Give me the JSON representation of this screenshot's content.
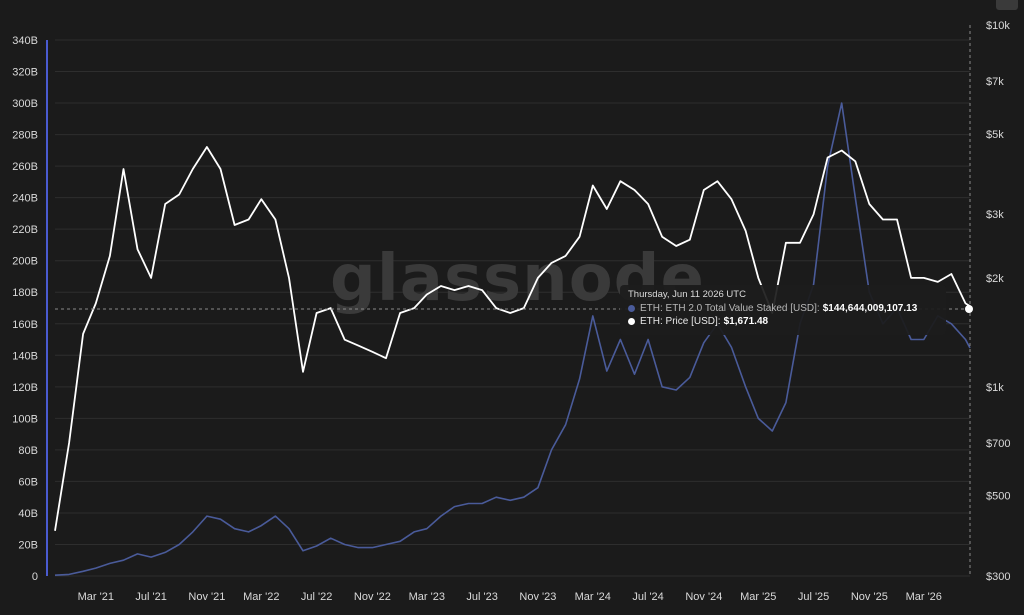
{
  "chart_data": {
    "type": "line",
    "watermark": "glassnode",
    "x_axis": {
      "range": [
        "2020-12-01",
        "2026-06-11"
      ],
      "tick_labels": [
        "Mar '21",
        "Jul '21",
        "Nov '21",
        "Mar '22",
        "Jul '22",
        "Nov '22",
        "Mar '23",
        "Jul '23",
        "Nov '23",
        "Mar '24",
        "Jul '24",
        "Nov '24",
        "Mar '25",
        "Jul '25",
        "Nov '25",
        "Mar '26"
      ],
      "tick_dates": [
        "2021-03-01",
        "2021-07-01",
        "2021-11-01",
        "2022-03-01",
        "2022-07-01",
        "2022-11-01",
        "2023-03-01",
        "2023-07-01",
        "2023-11-01",
        "2024-03-01",
        "2024-07-01",
        "2024-11-01",
        "2025-03-01",
        "2025-07-01",
        "2025-11-01",
        "2026-03-01"
      ]
    },
    "y_left": {
      "ylim": [
        0,
        340
      ],
      "tick_values": [
        0,
        20,
        40,
        60,
        80,
        100,
        120,
        140,
        160,
        180,
        200,
        220,
        240,
        260,
        280,
        300,
        320,
        340
      ],
      "tick_labels": [
        "0",
        "20B",
        "40B",
        "60B",
        "80B",
        "100B",
        "120B",
        "140B",
        "160B",
        "180B",
        "200B",
        "220B",
        "240B",
        "260B",
        "280B",
        "300B",
        "320B",
        "340B"
      ]
    },
    "y_right": {
      "scale": "log",
      "ylim": [
        300,
        10000
      ],
      "tick_values": [
        300,
        500,
        700,
        1000,
        2000,
        3000,
        5000,
        7000,
        10000
      ],
      "tick_labels": [
        "$300",
        "$500",
        "$700",
        "$1k",
        "$2k",
        "$3k",
        "$5k",
        "$7k",
        "$10k"
      ]
    },
    "grid": true,
    "series": [
      {
        "name": "ETH: ETH 2.0 Total Value Staked [USD]",
        "axis": "left",
        "color": "#4a5b9a",
        "x": [
          "2020-12-01",
          "2021-01-01",
          "2021-02-01",
          "2021-03-01",
          "2021-04-01",
          "2021-05-01",
          "2021-06-01",
          "2021-07-01",
          "2021-08-01",
          "2021-09-01",
          "2021-10-01",
          "2021-11-01",
          "2021-12-01",
          "2022-01-01",
          "2022-02-01",
          "2022-03-01",
          "2022-04-01",
          "2022-05-01",
          "2022-06-01",
          "2022-07-01",
          "2022-08-01",
          "2022-09-01",
          "2022-10-01",
          "2022-11-01",
          "2022-12-01",
          "2023-01-01",
          "2023-02-01",
          "2023-03-01",
          "2023-04-01",
          "2023-05-01",
          "2023-06-01",
          "2023-07-01",
          "2023-08-01",
          "2023-09-01",
          "2023-10-01",
          "2023-11-01",
          "2023-12-01",
          "2024-01-01",
          "2024-02-01",
          "2024-03-01",
          "2024-04-01",
          "2024-05-01",
          "2024-06-01",
          "2024-07-01",
          "2024-08-01",
          "2024-09-01",
          "2024-10-01",
          "2024-11-01",
          "2024-12-01",
          "2025-01-01",
          "2025-02-01",
          "2025-03-01",
          "2025-04-01",
          "2025-05-01",
          "2025-06-01",
          "2025-07-01",
          "2025-08-01",
          "2025-09-01",
          "2025-10-01",
          "2025-11-01",
          "2025-12-01",
          "2026-01-01",
          "2026-02-01",
          "2026-03-01",
          "2026-04-01",
          "2026-05-01",
          "2026-06-01",
          "2026-06-11"
        ],
        "values": [
          0.5,
          1,
          3,
          5,
          8,
          10,
          14,
          12,
          15,
          20,
          28,
          38,
          36,
          30,
          28,
          32,
          38,
          30,
          16,
          19,
          24,
          20,
          18,
          18,
          20,
          22,
          28,
          30,
          38,
          44,
          46,
          46,
          50,
          48,
          50,
          56,
          80,
          96,
          125,
          165,
          130,
          150,
          128,
          150,
          120,
          118,
          126,
          148,
          160,
          145,
          120,
          100,
          92,
          110,
          160,
          185,
          260,
          300,
          240,
          180,
          160,
          170,
          150,
          150,
          165,
          160,
          150,
          144.64
        ]
      },
      {
        "name": "ETH: Price [USD]",
        "axis": "right",
        "color": "#ffffff",
        "x": [
          "2020-12-01",
          "2021-01-01",
          "2021-02-01",
          "2021-03-01",
          "2021-04-01",
          "2021-05-01",
          "2021-06-01",
          "2021-07-01",
          "2021-08-01",
          "2021-09-01",
          "2021-10-01",
          "2021-11-01",
          "2021-12-01",
          "2022-01-01",
          "2022-02-01",
          "2022-03-01",
          "2022-04-01",
          "2022-05-01",
          "2022-06-01",
          "2022-07-01",
          "2022-08-01",
          "2022-09-01",
          "2022-10-01",
          "2022-11-01",
          "2022-12-01",
          "2023-01-01",
          "2023-02-01",
          "2023-03-01",
          "2023-04-01",
          "2023-05-01",
          "2023-06-01",
          "2023-07-01",
          "2023-08-01",
          "2023-09-01",
          "2023-10-01",
          "2023-11-01",
          "2023-12-01",
          "2024-01-01",
          "2024-02-01",
          "2024-03-01",
          "2024-04-01",
          "2024-05-01",
          "2024-06-01",
          "2024-07-01",
          "2024-08-01",
          "2024-09-01",
          "2024-10-01",
          "2024-11-01",
          "2024-12-01",
          "2025-01-01",
          "2025-02-01",
          "2025-03-01",
          "2025-04-01",
          "2025-05-01",
          "2025-06-01",
          "2025-07-01",
          "2025-08-01",
          "2025-09-01",
          "2025-10-01",
          "2025-11-01",
          "2025-12-01",
          "2026-01-01",
          "2026-02-01",
          "2026-03-01",
          "2026-04-01",
          "2026-05-01",
          "2026-06-01",
          "2026-06-11"
        ],
        "values": [
          400,
          700,
          1400,
          1700,
          2300,
          4000,
          2400,
          2000,
          3200,
          3400,
          4000,
          4600,
          4000,
          2800,
          2900,
          3300,
          2900,
          2000,
          1100,
          1600,
          1650,
          1350,
          1300,
          1250,
          1200,
          1600,
          1650,
          1800,
          1900,
          1850,
          1900,
          1850,
          1650,
          1600,
          1650,
          2000,
          2200,
          2300,
          2600,
          3600,
          3100,
          3700,
          3500,
          3200,
          2600,
          2450,
          2550,
          3500,
          3700,
          3300,
          2700,
          2000,
          1600,
          2500,
          2500,
          3000,
          4300,
          4500,
          4200,
          3200,
          2900,
          2900,
          2000,
          2000,
          1950,
          2050,
          1700,
          1671.48
        ]
      }
    ],
    "tooltip": {
      "date": "Thursday, Jun 11 2026 UTC",
      "rows": [
        {
          "label": "ETH: ETH 2.0 Total Value Staked [USD]:",
          "value": "$144,644,009,107.13",
          "color": "#4a5b9a"
        },
        {
          "label": "ETH: Price [USD]:",
          "value": "$1,671.48",
          "color": "#ffffff"
        }
      ]
    }
  }
}
